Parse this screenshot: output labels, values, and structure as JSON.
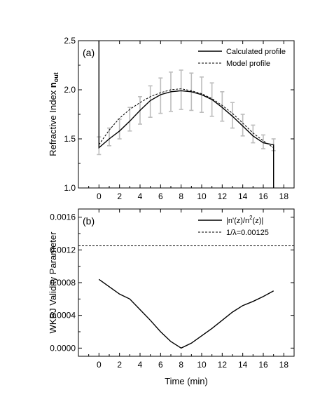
{
  "chart_data": [
    {
      "panel_label": "(a)",
      "type": "line",
      "xlabel": "",
      "ylabel": "Refractive Index ",
      "ylabel_sub": "out",
      "ylabel_bold": "n",
      "xlim": [
        -2,
        19
      ],
      "ylim": [
        1.0,
        2.5
      ],
      "x_ticks": [
        0,
        2,
        4,
        6,
        8,
        10,
        12,
        14,
        16,
        18
      ],
      "y_ticks": [
        1.0,
        1.5,
        2.0,
        2.5
      ],
      "y_tick_labels": [
        "1.0",
        "1.5",
        "2.0",
        "2.5"
      ],
      "legend_position": "top-right",
      "series": [
        {
          "name": "Calculated profile",
          "style": "solid",
          "x": [
            0,
            0,
            0,
            1,
            2,
            3,
            4,
            5,
            6,
            7,
            8,
            9,
            10,
            11,
            12,
            13,
            14,
            15,
            16,
            17,
            17,
            17
          ],
          "y": [
            2.5,
            1.5,
            1.41,
            1.5,
            1.58,
            1.68,
            1.79,
            1.89,
            1.95,
            1.98,
            1.99,
            1.98,
            1.95,
            1.9,
            1.82,
            1.73,
            1.63,
            1.53,
            1.46,
            1.44,
            1.2,
            1.0
          ]
        },
        {
          "name": "Model profile",
          "style": "dashed",
          "x": [
            0,
            1,
            2,
            3,
            4,
            5,
            6,
            7,
            8,
            9,
            10,
            11,
            12,
            13,
            14,
            15,
            16,
            17
          ],
          "y": [
            1.44,
            1.59,
            1.71,
            1.8,
            1.87,
            1.93,
            1.97,
            2.0,
            2.01,
            1.99,
            1.96,
            1.91,
            1.84,
            1.76,
            1.66,
            1.56,
            1.48,
            1.41
          ]
        }
      ],
      "error_bars": {
        "x": [
          0,
          1,
          2,
          3,
          4,
          5,
          6,
          7,
          8,
          9,
          10,
          11,
          12,
          13,
          14,
          15,
          16,
          17
        ],
        "y": [
          1.43,
          1.52,
          1.6,
          1.7,
          1.79,
          1.88,
          1.94,
          1.98,
          2.0,
          1.98,
          1.95,
          1.9,
          1.83,
          1.74,
          1.64,
          1.55,
          1.47,
          1.44
        ],
        "err": [
          0.09,
          0.09,
          0.1,
          0.12,
          0.14,
          0.16,
          0.18,
          0.2,
          0.2,
          0.19,
          0.18,
          0.17,
          0.15,
          0.13,
          0.11,
          0.09,
          0.07,
          0.06
        ]
      }
    },
    {
      "panel_label": "(b)",
      "type": "line",
      "xlabel": "Time (min)",
      "ylabel": "WKBJ Validity Parameter",
      "xlim": [
        -2,
        19
      ],
      "ylim": [
        -0.0001,
        0.0017
      ],
      "x_ticks": [
        0,
        2,
        4,
        6,
        8,
        10,
        12,
        14,
        16,
        18
      ],
      "y_ticks": [
        0.0,
        0.0004,
        0.0008,
        0.0012,
        0.0016
      ],
      "y_tick_labels": [
        "0.0000",
        "0.0004",
        "0.0008",
        "0.0012",
        "0.0016"
      ],
      "legend_position": "top-right",
      "series": [
        {
          "name": "|n'(z)/n",
          "name_sup": "2",
          "name_tail": "(z)|",
          "style": "solid",
          "x": [
            0,
            1,
            2,
            3,
            4,
            5,
            6,
            7,
            8,
            9,
            10,
            11,
            12,
            13,
            14,
            15,
            16,
            17
          ],
          "y": [
            0.00084,
            0.00075,
            0.00066,
            0.0006,
            0.00047,
            0.00034,
            0.0002,
            8e-05,
            0.0,
            6e-05,
            0.00015,
            0.00024,
            0.00034,
            0.00044,
            0.00052,
            0.00057,
            0.00063,
            0.0007
          ]
        },
        {
          "name": "1/",
          "name_symbol": "λ",
          "name_tail": "=0.00125",
          "style": "dashed",
          "x": [
            -2,
            19
          ],
          "y": [
            0.00125,
            0.00125
          ]
        }
      ]
    }
  ]
}
